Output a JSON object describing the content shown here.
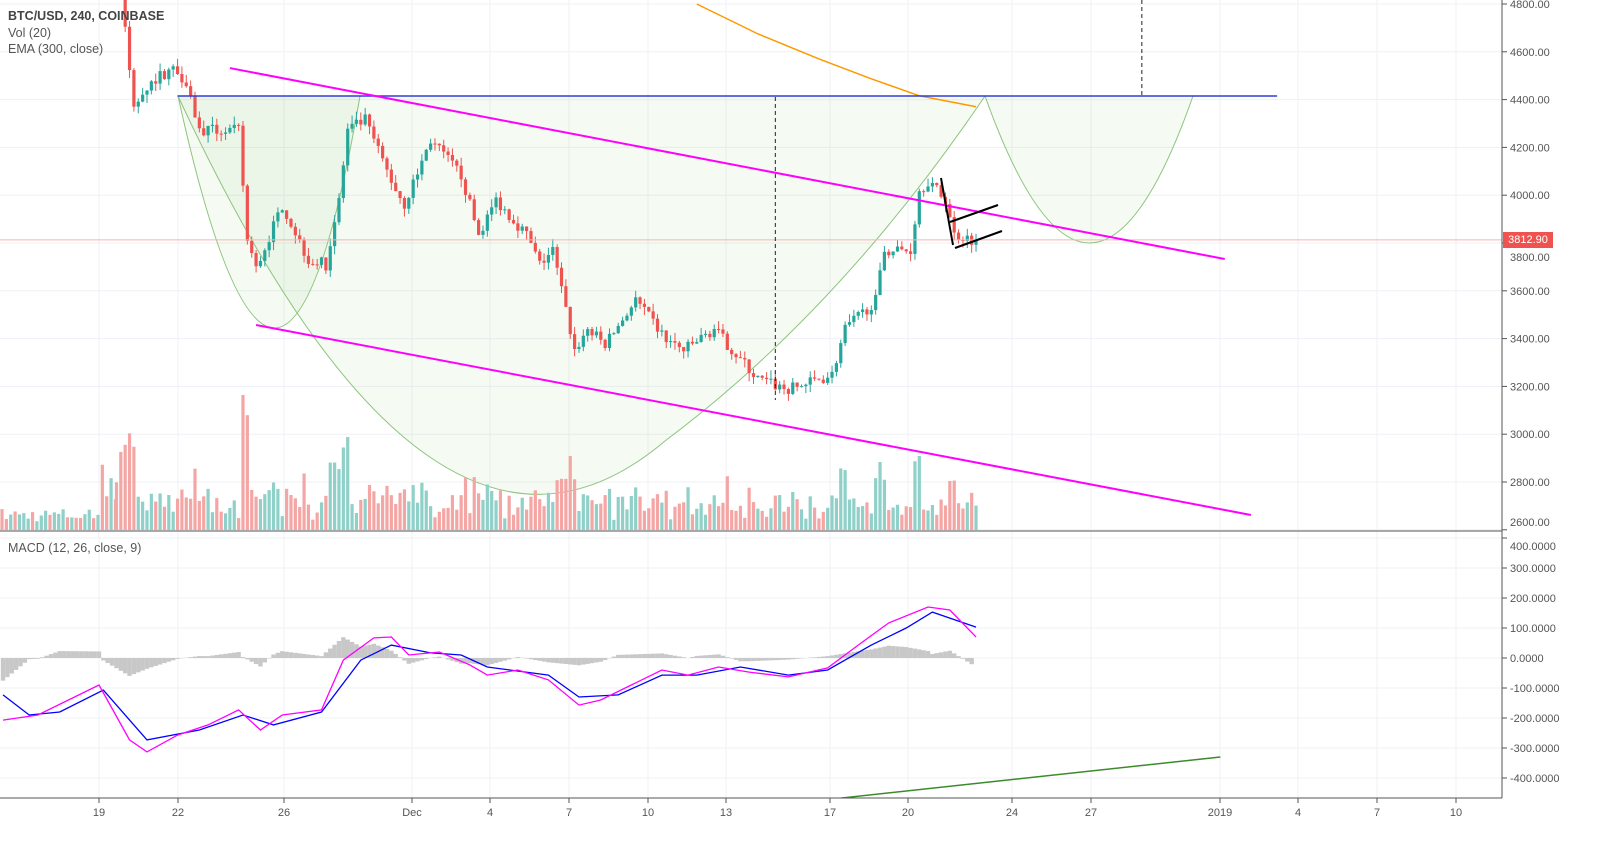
{
  "legend": {
    "symbol": "BTC/USD, 240, COINBASE",
    "volume": "Vol (20)",
    "ema": "EMA (300, close)",
    "macd": "MACD (12, 26, close, 9)"
  },
  "last_price_label": "3812.90",
  "colors": {
    "up": "#26a69a",
    "down": "#ef5350",
    "up_vol": "#8fd0c8",
    "down_vol": "#f4a6a4",
    "ema": "#ff9800",
    "channel": "#ff00ff",
    "resistance": "#2f3fd9",
    "cup": "#7cb96a",
    "macd_line": "#ff00ff",
    "signal_line": "#0000ff",
    "histogram": "#c8c8c8",
    "macd_trend": "#3d8a2b",
    "last_price": "#ef5350"
  },
  "chart_data": [
    {
      "type": "candlestick",
      "title": "BTC/USD, 240, COINBASE",
      "interval": "4h",
      "ylim": [
        2600,
        4800
      ],
      "y_ticks": [
        "4800.00",
        "4600.00",
        "4400.00",
        "4200.00",
        "4000.00",
        "3800.00",
        "3600.00",
        "3400.00",
        "3200.00",
        "3000.00",
        "2800.00",
        "2600.00"
      ],
      "x_ticks": [
        "19",
        "22",
        "26",
        "Dec",
        "4",
        "7",
        "10",
        "13",
        "17",
        "20",
        "24",
        "27",
        "2019",
        "4",
        "7",
        "10"
      ],
      "approx_close_path": [
        [
          "2018-11-19T16:00",
          5000
        ],
        [
          "2018-11-19T20:00",
          4850
        ],
        [
          "2018-11-20T08:00",
          4360
        ],
        [
          "2018-11-20T16:00",
          4440
        ],
        [
          "2018-11-21T08:00",
          4500
        ],
        [
          "2018-11-21T20:00",
          4530
        ],
        [
          "2018-11-22T08:00",
          4480
        ],
        [
          "2018-11-22T20:00",
          4270
        ],
        [
          "2018-11-24T08:00",
          4270
        ],
        [
          "2018-11-24T16:00",
          3810
        ],
        [
          "2018-11-25T00:00",
          3690
        ],
        [
          "2018-11-26T00:00",
          3960
        ],
        [
          "2018-11-27T00:00",
          3730
        ],
        [
          "2018-11-27T16:00",
          3710
        ],
        [
          "2018-11-28T04:00",
          3980
        ],
        [
          "2018-11-28T12:00",
          4270
        ],
        [
          "2018-11-29T04:00",
          4315
        ],
        [
          "2018-11-30T04:00",
          4060
        ],
        [
          "2018-11-30T16:00",
          3960
        ],
        [
          "2018-12-01T16:00",
          4230
        ],
        [
          "2018-12-02T20:00",
          4085
        ],
        [
          "2018-12-03T12:00",
          3835
        ],
        [
          "2018-12-04T04:00",
          3980
        ],
        [
          "2018-12-05T08:00",
          3835
        ],
        [
          "2018-12-05T20:00",
          3710
        ],
        [
          "2018-12-06T08:00",
          3770
        ],
        [
          "2018-12-07T04:00",
          3350
        ],
        [
          "2018-12-07T16:00",
          3440
        ],
        [
          "2018-12-08T08:00",
          3375
        ],
        [
          "2018-12-09T12:00",
          3560
        ],
        [
          "2018-12-10T16:00",
          3395
        ],
        [
          "2018-12-11T08:00",
          3350
        ],
        [
          "2018-12-12T12:00",
          3440
        ],
        [
          "2018-12-13T00:00",
          3375
        ],
        [
          "2018-12-14T04:00",
          3230
        ],
        [
          "2018-12-15T08:00",
          3185
        ],
        [
          "2018-12-16T12:00",
          3230
        ],
        [
          "2018-12-17T00:00",
          3250
        ],
        [
          "2018-12-17T12:00",
          3440
        ],
        [
          "2018-12-18T16:00",
          3560
        ],
        [
          "2018-12-19T00:00",
          3770
        ],
        [
          "2018-12-20T00:00",
          3770
        ],
        [
          "2018-12-20T08:00",
          4020
        ],
        [
          "2018-12-20T16:00",
          4060
        ],
        [
          "2018-12-21T08:00",
          3980
        ],
        [
          "2018-12-21T16:00",
          3835
        ],
        [
          "2018-12-22T12:00",
          3812.9
        ]
      ],
      "last_price": 3812.9,
      "ema_300": [
        [
          "2018-12-11T20:00",
          4800
        ],
        [
          "2018-12-14T04:00",
          4675
        ],
        [
          "2018-12-16T12:00",
          4570
        ],
        [
          "2018-12-18T12:00",
          4487
        ],
        [
          "2018-12-20T08:00",
          4416
        ],
        [
          "2018-12-22T12:00",
          4370
        ]
      ],
      "drawings": {
        "resistance": {
          "price": 4415,
          "from": "2018-11-22T00:00",
          "to": "2019-01-03T00:00"
        },
        "channel_upper": [
          [
            "2018-11-24T00:00",
            4532
          ],
          [
            "2019-01-01T00:00",
            3733
          ]
        ],
        "channel_lower": [
          [
            "2018-11-25T00:00",
            3457
          ],
          [
            "2019-01-02T00:00",
            2662
          ]
        ],
        "dashed_verticals": [
          "2018-12-14T20:00",
          "2018-12-28T20:00"
        ]
      }
    },
    {
      "type": "bar",
      "title": "Vol (20)"
    },
    {
      "type": "line",
      "title": "MACD (12, 26, close, 9)",
      "ylim": [
        -450,
        420
      ],
      "y_ticks": [
        "400.0000",
        "300.0000",
        "200.0000",
        "100.0000",
        "0.0000",
        "-100.0000",
        "-200.0000",
        "-300.0000",
        "-400.0000"
      ],
      "series": [
        {
          "values": [
            [
              "2018-11-15T08:00",
              -207
            ],
            [
              "2018-11-16T16:00",
              -190
            ],
            [
              "2018-11-19T00:00",
              -90
            ],
            [
              "2018-11-20T04:00",
              -273
            ],
            [
              "2018-11-20T20:00",
              -313
            ],
            [
              "2018-11-22T00:00",
              -257
            ],
            [
              "2018-11-23T04:00",
              -223
            ],
            [
              "2018-11-24T08:00",
              -173
            ],
            [
              "2018-11-25T04:00",
              -240
            ],
            [
              "2018-11-26T00:00",
              -190
            ],
            [
              "2018-11-27T12:00",
              -173
            ],
            [
              "2018-11-28T08:00",
              -7
            ],
            [
              "2018-11-29T12:00",
              67
            ],
            [
              "2018-11-30T04:00",
              70
            ],
            [
              "2018-11-30T20:00",
              10
            ],
            [
              "2018-12-02T00:00",
              20
            ],
            [
              "2018-12-03T04:00",
              -23
            ],
            [
              "2018-12-03T20:00",
              -57
            ],
            [
              "2018-12-05T00:00",
              -40
            ],
            [
              "2018-12-06T04:00",
              -73
            ],
            [
              "2018-12-07T08:00",
              -157
            ],
            [
              "2018-12-08T04:00",
              -140
            ],
            [
              "2018-12-09T08:00",
              -90
            ],
            [
              "2018-12-10T12:00",
              -40
            ],
            [
              "2018-12-11T12:00",
              -57
            ],
            [
              "2018-12-12T16:00",
              -30
            ],
            [
              "2018-12-13T20:00",
              -47
            ],
            [
              "2018-12-15T08:00",
              -63
            ],
            [
              "2018-12-16T20:00",
              -33
            ],
            [
              "2018-12-18T00:00",
              43
            ],
            [
              "2018-12-19T04:00",
              117
            ],
            [
              "2018-12-20T16:00",
              170
            ],
            [
              "2018-12-21T12:00",
              160
            ],
            [
              "2018-12-22T12:00",
              70
            ]
          ]
        },
        {
          "values": [
            [
              "2018-11-15T08:00",
              -123
            ],
            [
              "2018-11-16T08:00",
              -190
            ],
            [
              "2018-11-17T12:00",
              -180
            ],
            [
              "2018-11-19T04:00",
              -107
            ],
            [
              "2018-11-20T20:00",
              -273
            ],
            [
              "2018-11-22T20:00",
              -240
            ],
            [
              "2018-11-24T12:00",
              -190
            ],
            [
              "2018-11-25T16:00",
              -223
            ],
            [
              "2018-11-27T12:00",
              -180
            ],
            [
              "2018-11-29T00:00",
              -7
            ],
            [
              "2018-11-30T04:00",
              43
            ],
            [
              "2018-12-01T16:00",
              17
            ],
            [
              "2018-12-02T20:00",
              10
            ],
            [
              "2018-12-03T20:00",
              -30
            ],
            [
              "2018-12-06T04:00",
              -57
            ],
            [
              "2018-12-07T08:00",
              -130
            ],
            [
              "2018-12-08T20:00",
              -123
            ],
            [
              "2018-12-10T12:00",
              -57
            ],
            [
              "2018-12-11T20:00",
              -57
            ],
            [
              "2018-12-13T12:00",
              -30
            ],
            [
              "2018-12-15T08:00",
              -57
            ],
            [
              "2018-12-16T20:00",
              -40
            ],
            [
              "2018-12-18T12:00",
              43
            ],
            [
              "2018-12-19T20:00",
              100
            ],
            [
              "2018-12-20T20:00",
              153
            ],
            [
              "2018-12-22T12:00",
              103
            ]
          ]
        }
      ],
      "trendline": [
        [
          "2018-12-17T08:00",
          -467
        ],
        [
          "2018-12-31T20:00",
          -330
        ]
      ]
    }
  ]
}
